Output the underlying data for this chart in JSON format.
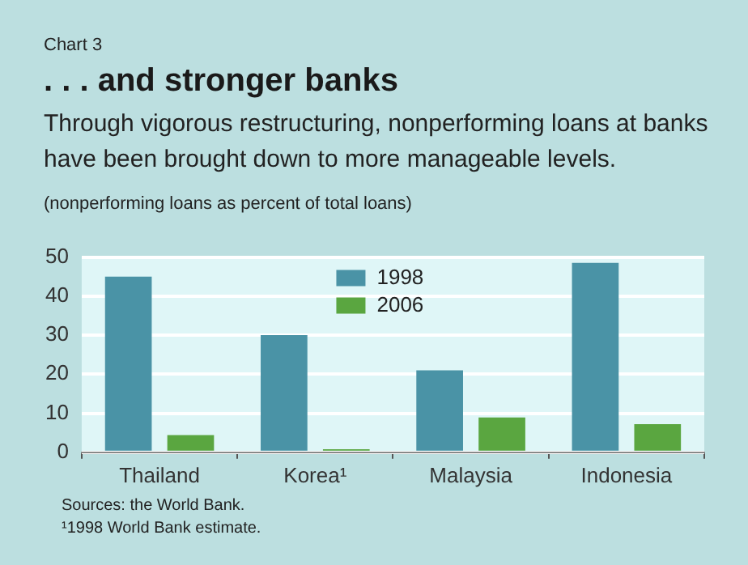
{
  "chart_data": {
    "type": "bar",
    "title": ". . . and stronger banks",
    "subtitle": "Through vigorous restructuring, nonperforming loans at banks have been brought down to more manageable levels.",
    "ylabel": "(nonperforming loans as percent of total loans)",
    "categories": [
      "Thailand",
      "Korea¹",
      "Malaysia",
      "Indonesia"
    ],
    "series": [
      {
        "name": "1998",
        "color": "#4a93a6",
        "values": [
          45,
          30,
          21,
          48.5
        ]
      },
      {
        "name": "2006",
        "color": "#5aa640",
        "values": [
          4.4,
          0.8,
          8.9,
          7.2
        ]
      }
    ],
    "ylim": [
      0,
      50
    ],
    "yticks": [
      0,
      10,
      20,
      30,
      40,
      50
    ],
    "grid": "y",
    "legend": "top",
    "annotations": [
      "Chart 3",
      "Sources: the World Bank.",
      "¹1998 World Bank estimate."
    ]
  }
}
